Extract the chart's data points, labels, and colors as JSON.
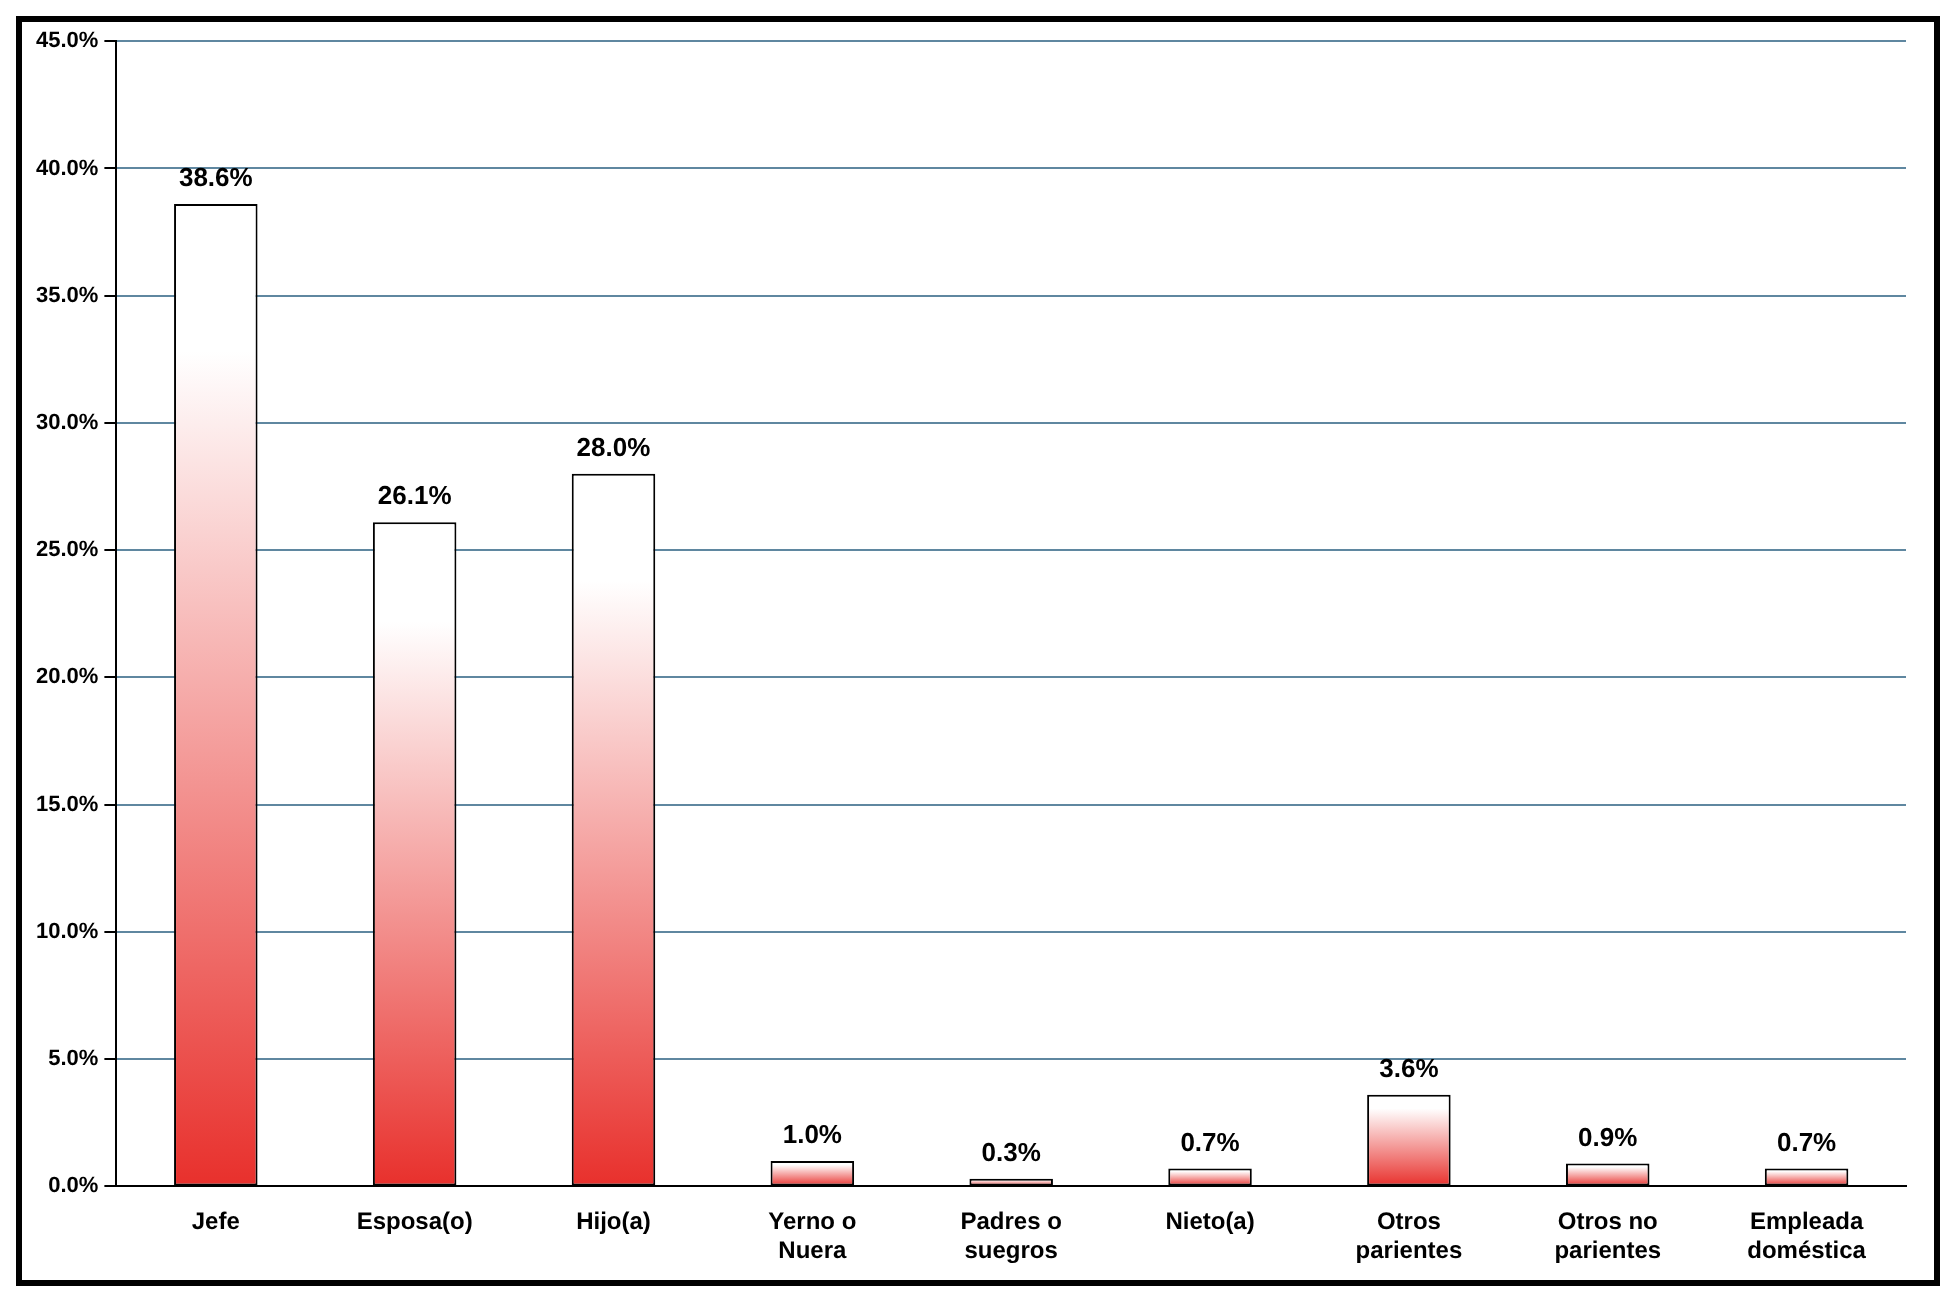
{
  "chart_data": {
    "type": "bar",
    "categories": [
      "Jefe",
      "Esposa(o)",
      "Hijo(a)",
      "Yerno o Nuera",
      "Padres o suegros",
      "Nieto(a)",
      "Otros parientes",
      "Otros no parientes",
      "Empleada doméstica"
    ],
    "values": [
      38.6,
      26.1,
      28.0,
      1.0,
      0.3,
      0.7,
      3.6,
      0.9,
      0.7
    ],
    "value_labels": [
      "38.6%",
      "26.1%",
      "28.0%",
      "1.0%",
      "0.3%",
      "0.7%",
      "3.6%",
      "0.9%",
      "0.7%"
    ],
    "color": "#e8302c",
    "ylim": [
      0,
      45
    ],
    "yticks": [
      {
        "value": 0,
        "label": "0.0%"
      },
      {
        "value": 5,
        "label": "5.0%"
      },
      {
        "value": 10,
        "label": "10.0%"
      },
      {
        "value": 15,
        "label": "15.0%"
      },
      {
        "value": 20,
        "label": "20.0%"
      },
      {
        "value": 25,
        "label": "25.0%"
      },
      {
        "value": 30,
        "label": "30.0%"
      },
      {
        "value": 35,
        "label": "35.0%"
      },
      {
        "value": 40,
        "label": "40.0%"
      },
      {
        "value": 45,
        "label": "45.0%"
      }
    ],
    "grid": "y",
    "legend": false
  }
}
